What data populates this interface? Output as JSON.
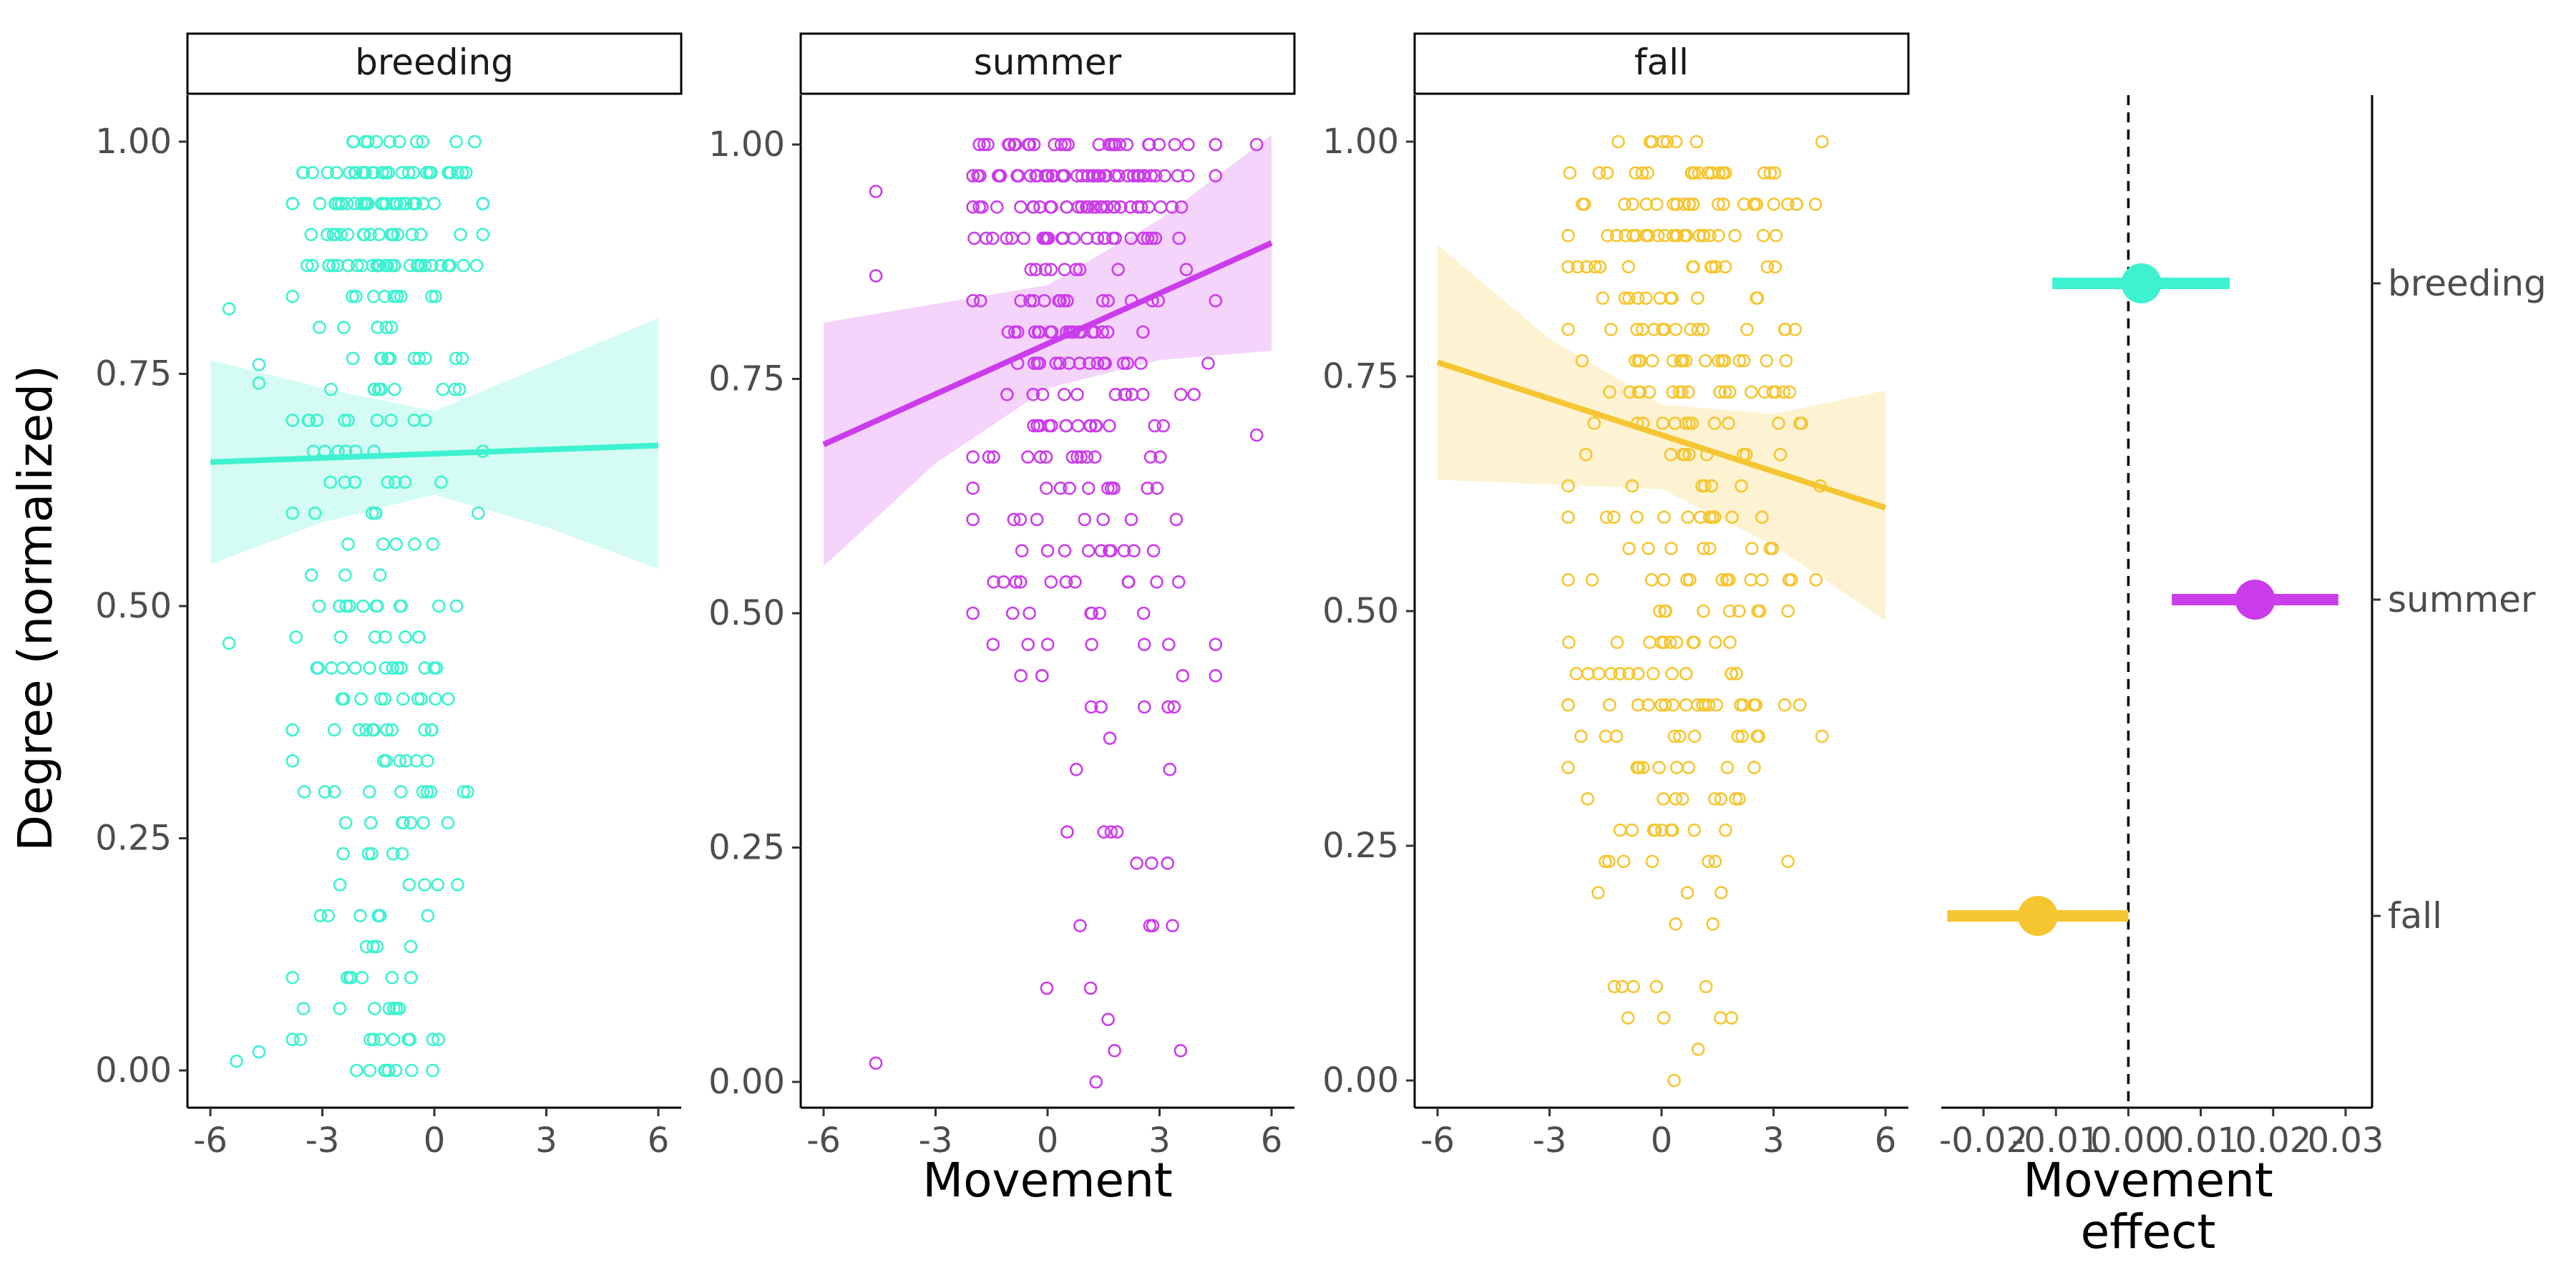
{
  "figure": {
    "ylabel": "Degree (normalized)",
    "xlabel": "Movement",
    "effect_xlabel_line1": "Movement",
    "effect_xlabel_line2": "effect"
  },
  "chart_data": [
    {
      "type": "scatter",
      "facet": "breeding",
      "color": "#3EF2CF",
      "xlim": [
        -6,
        6
      ],
      "ylim": [
        0,
        1
      ],
      "x_ticks": [
        "-6",
        "-3",
        "0",
        "3",
        "6"
      ],
      "y_ticks": [
        "0.00",
        "0.25",
        "0.50",
        "0.75",
        "1.00"
      ],
      "fit": {
        "x": [
          -6,
          6
        ],
        "y": [
          0.655,
          0.673
        ]
      },
      "ci": {
        "x": [
          -6,
          -3,
          0,
          3,
          6
        ],
        "lower": [
          0.545,
          0.59,
          0.62,
          0.585,
          0.54
        ],
        "upper": [
          0.765,
          0.735,
          0.71,
          0.76,
          0.81
        ]
      },
      "x_range": [
        -3.8,
        1.3
      ],
      "x_center": -1.4,
      "outliers": [
        [
          -5.5,
          0.82
        ],
        [
          -5.5,
          0.46
        ],
        [
          -5.3,
          0.01
        ],
        [
          -4.7,
          0.76
        ],
        [
          -4.7,
          0.74
        ],
        [
          -4.7,
          0.02
        ]
      ]
    },
    {
      "type": "scatter",
      "facet": "summer",
      "color": "#CB3CEB",
      "xlim": [
        -6,
        6
      ],
      "ylim": [
        0,
        1
      ],
      "x_ticks": [
        "-6",
        "-3",
        "0",
        "3",
        "6"
      ],
      "y_ticks": [
        "0.00",
        "0.25",
        "0.50",
        "0.75",
        "1.00"
      ],
      "fit": {
        "x": [
          -6,
          6
        ],
        "y": [
          0.68,
          0.895
        ]
      },
      "ci": {
        "x": [
          -6,
          -3,
          0,
          3,
          6
        ],
        "lower": [
          0.55,
          0.66,
          0.74,
          0.77,
          0.78
        ],
        "upper": [
          0.81,
          0.83,
          0.85,
          0.92,
          1.01
        ]
      },
      "x_range": [
        -2.0,
        4.5
      ],
      "x_center": 1.0,
      "outliers": [
        [
          -4.6,
          0.95
        ],
        [
          -4.6,
          0.86
        ],
        [
          -4.6,
          0.02
        ],
        [
          5.6,
          1.0
        ],
        [
          5.6,
          0.69
        ]
      ]
    },
    {
      "type": "scatter",
      "facet": "fall",
      "color": "#F5C632",
      "xlim": [
        -6,
        6
      ],
      "ylim": [
        0,
        1
      ],
      "x_ticks": [
        "-6",
        "-3",
        "0",
        "3",
        "6"
      ],
      "y_ticks": [
        "0.00",
        "0.25",
        "0.50",
        "0.75",
        "1.00"
      ],
      "fit": {
        "x": [
          -6,
          6
        ],
        "y": [
          0.765,
          0.61
        ]
      },
      "ci": {
        "x": [
          -6,
          -3,
          0,
          3,
          6
        ],
        "lower": [
          0.64,
          0.635,
          0.63,
          0.57,
          0.49
        ],
        "upper": [
          0.89,
          0.79,
          0.72,
          0.71,
          0.735
        ]
      },
      "x_range": [
        -2.5,
        4.3
      ],
      "x_center": 0.8,
      "outliers": []
    },
    {
      "type": "dot-range",
      "xlabel": "Movement effect",
      "xlim": [
        -0.025,
        0.031
      ],
      "x_ticks": [
        "-0.02",
        "-0.01",
        "0.00",
        "0.01",
        "0.02",
        "0.03"
      ],
      "reference_line": 0.0,
      "categories": [
        "breeding",
        "summer",
        "fall"
      ],
      "estimates": [
        {
          "name": "breeding",
          "color": "#3EF2CF",
          "value": 0.0018,
          "low": -0.0105,
          "high": 0.014
        },
        {
          "name": "summer",
          "color": "#CB3CEB",
          "value": 0.0175,
          "low": 0.006,
          "high": 0.029
        },
        {
          "name": "fall",
          "color": "#F5C632",
          "value": -0.0125,
          "low": -0.025,
          "high": 0.0
        }
      ]
    }
  ]
}
